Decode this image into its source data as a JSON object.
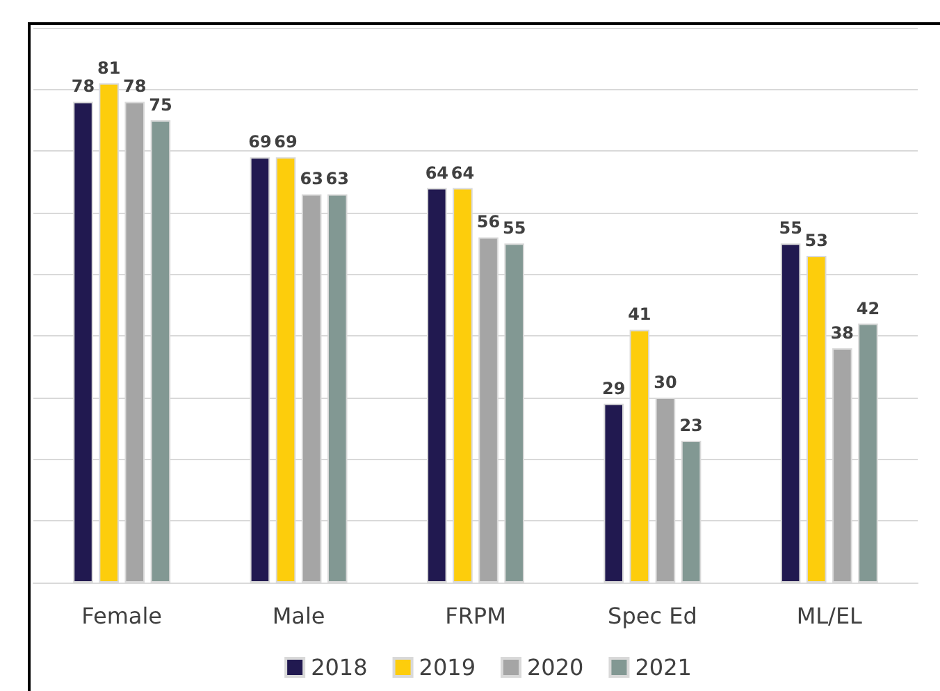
{
  "chart_data": {
    "type": "bar",
    "categories": [
      "Female",
      "Male",
      "FRPM",
      "Spec Ed",
      "ML/EL"
    ],
    "series": [
      {
        "name": "2018",
        "color": "#211950",
        "values": [
          78,
          69,
          64,
          29,
          55
        ]
      },
      {
        "name": "2019",
        "color": "#fdcd0c",
        "values": [
          81,
          69,
          64,
          41,
          53
        ]
      },
      {
        "name": "2020",
        "color": "#a5a5a5",
        "values": [
          78,
          63,
          56,
          30,
          38
        ]
      },
      {
        "name": "2021",
        "color": "#829893",
        "values": [
          75,
          63,
          55,
          23,
          42
        ]
      }
    ],
    "ylim": [
      0,
      90
    ],
    "yticks": [
      {
        "value": 0,
        "label": null
      },
      {
        "value": 10,
        "label": null
      },
      {
        "value": 20,
        "label": null
      },
      {
        "value": 30,
        "label": null
      },
      {
        "value": 40,
        "label": null
      },
      {
        "value": 50,
        "label": null
      },
      {
        "value": 60,
        "label": null
      },
      {
        "value": 70,
        "label": null
      },
      {
        "value": 80,
        "label": null
      },
      {
        "value": 90,
        "label": null
      }
    ],
    "tick_labels": "x",
    "grid": "y",
    "legend": "bottom",
    "data_labels": true
  }
}
